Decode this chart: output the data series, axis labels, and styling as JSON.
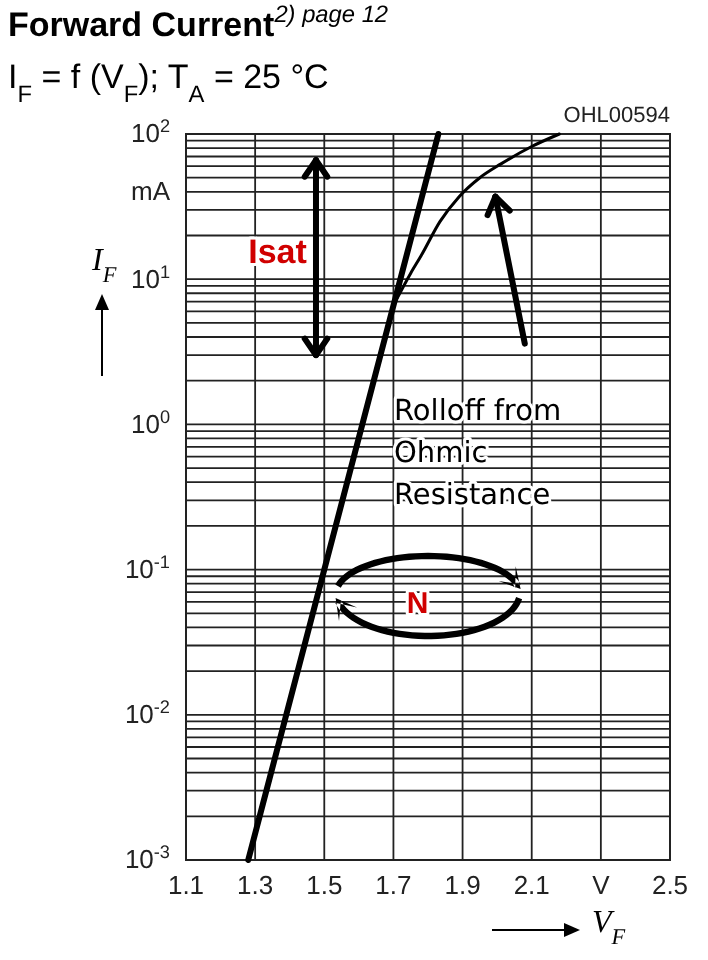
{
  "chart_data": {
    "type": "line",
    "title": "Forward Current$^{2) page 12}$",
    "subtitle": "I$_{F}$ = f (V$_{F}$); T$_{A}$ = 25 °C",
    "xlabel": "V$_{F}$",
    "ylabel": "I$_{F}$",
    "annotations": [
      "OHL00594",
      "Isat",
      "N",
      "Rolloff from Ohmic Resistance"
    ],
    "series": [
      {
        "color": "#000000",
        "x": [
          1.28,
          1.83
        ],
        "values": [
          0.001,
          100
        ]
      },
      {
        "color": "#000000",
        "x": [
          1.7,
          1.75,
          1.78,
          1.835,
          1.89,
          1.95,
          2.01,
          2.1,
          2.18
        ],
        "values": [
          6.6,
          11,
          14.5,
          25,
          37,
          50,
          62,
          82,
          100
        ]
      }
    ],
    "log": true,
    "grid": true,
    "marker": "none",
    "line_style": "solid",
    "xlim": [
      1.1,
      2.5
    ],
    "xticks": [
      1.1,
      1.3,
      1.5,
      1.7,
      1.9,
      2.1,
      {
        "value": 2.3,
        "label": "V"
      },
      2.5
    ],
    "ylim": [
      0.001,
      100
    ],
    "yticks": [
      {
        "value": 0.001,
        "label": "10$^{-3}$"
      },
      {
        "value": 0.002,
        "label": null
      },
      {
        "value": 0.003,
        "label": null
      },
      {
        "value": 0.004,
        "label": null
      },
      {
        "value": 0.005,
        "label": null
      },
      {
        "value": 0.006,
        "label": null
      },
      {
        "value": 0.007,
        "label": null
      },
      {
        "value": 0.008,
        "label": null
      },
      {
        "value": 0.009,
        "label": null
      },
      {
        "value": 0.01,
        "label": "10$^{-2}$"
      },
      {
        "value": 0.02,
        "label": null
      },
      {
        "value": 0.03,
        "label": null
      },
      {
        "value": 0.04,
        "label": null
      },
      {
        "value": 0.05,
        "label": null
      },
      {
        "value": 0.06,
        "label": null
      },
      {
        "value": 0.07,
        "label": null
      },
      {
        "value": 0.08,
        "label": null
      },
      {
        "value": 0.09,
        "label": null
      },
      {
        "value": 0.1,
        "label": "10$^{-1}$"
      },
      {
        "value": 0.2,
        "label": null
      },
      {
        "value": 0.3,
        "label": null
      },
      {
        "value": 0.4,
        "label": null
      },
      {
        "value": 0.5,
        "label": null
      },
      {
        "value": 0.6,
        "label": null
      },
      {
        "value": 0.7,
        "label": null
      },
      {
        "value": 0.8,
        "label": null
      },
      {
        "value": 0.9,
        "label": null
      },
      {
        "value": 1,
        "label": "10$^{0}$"
      },
      {
        "value": 2,
        "label": null
      },
      {
        "value": 3,
        "label": null
      },
      {
        "value": 4,
        "label": null
      },
      {
        "value": 5,
        "label": null
      },
      {
        "value": 6,
        "label": null
      },
      {
        "value": 7,
        "label": null
      },
      {
        "value": 8,
        "label": null
      },
      {
        "value": 9,
        "label": null
      },
      {
        "value": 10,
        "label": "10$^{1}$"
      },
      {
        "value": 20,
        "label": null
      },
      {
        "value": 30,
        "label": null
      },
      {
        "value": 40,
        "label": "mA"
      },
      {
        "value": 50,
        "label": null
      },
      {
        "value": 60,
        "label": null
      },
      {
        "value": 70,
        "label": null
      },
      {
        "value": 80,
        "label": null
      },
      {
        "value": 90,
        "label": null
      },
      {
        "value": 100,
        "label": "10$^{2}$"
      }
    ]
  }
}
